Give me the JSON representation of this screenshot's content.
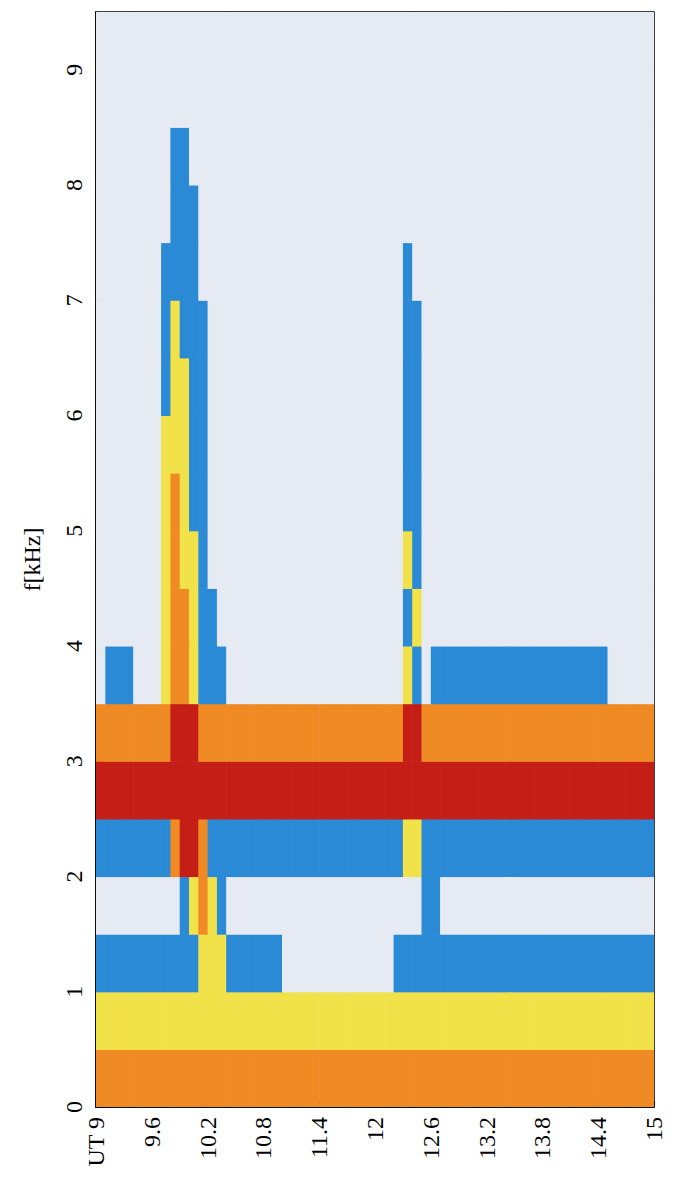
{
  "chart_data": {
    "type": "heatmap",
    "y_label": "f[kHz]",
    "xlim": [
      9,
      15
    ],
    "ylim": [
      0,
      9.5
    ],
    "xticks": [
      {
        "value": 9,
        "label": "UT 9"
      },
      9.6,
      10.2,
      10.8,
      11.4,
      12,
      12.6,
      13.2,
      13.8,
      14.4,
      15
    ],
    "yticks": [
      0,
      1,
      2,
      3,
      4,
      5,
      6,
      7,
      8,
      9
    ],
    "grid": false,
    "colors": [
      "#e6eaf2",
      "#2b8ad6",
      "#f2e24a",
      "#f08a24",
      "#c41e16"
    ],
    "time_edges": [
      9,
      9.1,
      9.2,
      9.3,
      9.4,
      9.5,
      9.6,
      9.7,
      9.8,
      9.9,
      10,
      10.1,
      10.2,
      10.3,
      10.4,
      10.5,
      10.6,
      10.7,
      10.8,
      10.9,
      11,
      11.1,
      11.2,
      11.3,
      11.4,
      11.5,
      11.6,
      11.7,
      11.8,
      11.9,
      12,
      12.1,
      12.2,
      12.3,
      12.4,
      12.5,
      12.6,
      12.7,
      12.8,
      12.9,
      13,
      13.1,
      13.2,
      13.3,
      13.4,
      13.5,
      13.6,
      13.7,
      13.8,
      13.9,
      14,
      14.1,
      14.2,
      14.3,
      14.4,
      14.5,
      14.6,
      14.7,
      14.8,
      14.9,
      15
    ],
    "freq_edges": [
      0,
      0.5,
      1,
      1.5,
      2,
      2.5,
      3,
      3.5,
      4,
      4.5,
      5,
      5.5,
      6,
      6.5,
      7,
      7.5,
      8,
      8.5,
      9,
      9.5
    ],
    "intensity": [
      [
        3,
        3,
        3,
        3,
        3,
        3,
        3,
        3,
        3,
        3,
        3,
        3,
        3,
        3,
        3,
        3,
        3,
        3,
        3,
        3,
        3,
        3,
        3,
        3,
        3,
        3,
        3,
        3,
        3,
        3,
        3,
        3,
        3,
        3,
        3,
        3,
        3,
        3,
        3,
        3,
        3,
        3,
        3,
        3,
        3,
        3,
        3,
        3,
        3,
        3,
        3,
        3,
        3,
        3,
        3,
        3,
        3,
        3,
        3,
        3
      ],
      [
        2,
        2,
        2,
        2,
        2,
        2,
        2,
        2,
        2,
        2,
        2,
        2,
        2,
        2,
        2,
        2,
        2,
        2,
        2,
        2,
        2,
        2,
        2,
        2,
        2,
        2,
        2,
        2,
        2,
        2,
        2,
        2,
        2,
        2,
        2,
        2,
        2,
        2,
        2,
        2,
        2,
        2,
        2,
        2,
        2,
        2,
        2,
        2,
        2,
        2,
        2,
        2,
        2,
        2,
        2,
        2,
        2,
        2,
        2,
        2
      ],
      [
        1,
        1,
        1,
        1,
        1,
        1,
        1,
        1,
        1,
        1,
        1,
        2,
        2,
        2,
        1,
        1,
        1,
        1,
        1,
        1,
        0,
        0,
        0,
        0,
        0,
        0,
        0,
        0,
        0,
        0,
        0,
        0,
        1,
        1,
        1,
        1,
        1,
        1,
        1,
        1,
        1,
        1,
        1,
        1,
        1,
        1,
        1,
        1,
        1,
        1,
        1,
        1,
        1,
        1,
        1,
        1,
        1,
        1,
        1,
        1
      ],
      [
        0,
        0,
        0,
        0,
        0,
        0,
        0,
        0,
        0,
        1,
        2,
        3,
        2,
        1,
        0,
        0,
        0,
        0,
        0,
        0,
        0,
        0,
        0,
        0,
        0,
        0,
        0,
        0,
        0,
        0,
        0,
        0,
        0,
        0,
        0,
        1,
        1,
        0,
        0,
        0,
        0,
        0,
        0,
        0,
        0,
        0,
        0,
        0,
        0,
        0,
        0,
        0,
        0,
        0,
        0,
        0,
        0,
        0,
        0,
        0
      ],
      [
        1,
        1,
        1,
        1,
        1,
        1,
        1,
        1,
        3,
        4,
        4,
        3,
        1,
        1,
        1,
        1,
        1,
        1,
        1,
        1,
        1,
        1,
        1,
        1,
        1,
        1,
        1,
        1,
        1,
        1,
        1,
        1,
        1,
        2,
        2,
        1,
        1,
        1,
        1,
        1,
        1,
        1,
        1,
        1,
        1,
        1,
        1,
        1,
        1,
        1,
        1,
        1,
        1,
        1,
        1,
        1,
        1,
        1,
        1,
        1
      ],
      [
        4,
        4,
        4,
        4,
        4,
        4,
        4,
        4,
        4,
        4,
        4,
        4,
        4,
        4,
        4,
        4,
        4,
        4,
        4,
        4,
        4,
        4,
        4,
        4,
        4,
        4,
        4,
        4,
        4,
        4,
        4,
        4,
        4,
        4,
        4,
        4,
        4,
        4,
        4,
        4,
        4,
        4,
        4,
        4,
        4,
        4,
        4,
        4,
        4,
        4,
        4,
        4,
        4,
        4,
        4,
        4,
        4,
        4,
        4,
        4
      ],
      [
        3,
        3,
        3,
        3,
        3,
        3,
        3,
        3,
        4,
        4,
        4,
        3,
        3,
        3,
        3,
        3,
        3,
        3,
        3,
        3,
        3,
        3,
        3,
        3,
        3,
        3,
        3,
        3,
        3,
        3,
        3,
        3,
        3,
        4,
        4,
        3,
        3,
        3,
        3,
        3,
        3,
        3,
        3,
        3,
        3,
        3,
        3,
        3,
        3,
        3,
        3,
        3,
        3,
        3,
        3,
        3,
        3,
        3,
        3,
        3
      ],
      [
        0,
        1,
        1,
        1,
        0,
        0,
        0,
        2,
        3,
        3,
        2,
        1,
        1,
        1,
        0,
        0,
        0,
        0,
        0,
        0,
        0,
        0,
        0,
        0,
        0,
        0,
        0,
        0,
        0,
        0,
        0,
        0,
        0,
        2,
        1,
        0,
        1,
        1,
        1,
        1,
        1,
        1,
        1,
        1,
        1,
        1,
        1,
        1,
        1,
        1,
        1,
        1,
        1,
        1,
        1,
        0,
        0,
        0,
        0,
        0
      ],
      [
        0,
        0,
        0,
        0,
        0,
        0,
        0,
        2,
        3,
        3,
        2,
        1,
        1,
        0,
        0,
        0,
        0,
        0,
        0,
        0,
        0,
        0,
        0,
        0,
        0,
        0,
        0,
        0,
        0,
        0,
        0,
        0,
        0,
        1,
        2,
        0,
        0,
        0,
        0,
        0,
        0,
        0,
        0,
        0,
        0,
        0,
        0,
        0,
        0,
        0,
        0,
        0,
        0,
        0,
        0,
        0,
        0,
        0,
        0,
        0
      ],
      [
        0,
        0,
        0,
        0,
        0,
        0,
        0,
        2,
        3,
        2,
        2,
        1,
        0,
        0,
        0,
        0,
        0,
        0,
        0,
        0,
        0,
        0,
        0,
        0,
        0,
        0,
        0,
        0,
        0,
        0,
        0,
        0,
        0,
        2,
        1,
        0,
        0,
        0,
        0,
        0,
        0,
        0,
        0,
        0,
        0,
        0,
        0,
        0,
        0,
        0,
        0,
        0,
        0,
        0,
        0,
        0,
        0,
        0,
        0,
        0
      ],
      [
        0,
        0,
        0,
        0,
        0,
        0,
        0,
        2,
        3,
        2,
        1,
        1,
        0,
        0,
        0,
        0,
        0,
        0,
        0,
        0,
        0,
        0,
        0,
        0,
        0,
        0,
        0,
        0,
        0,
        0,
        0,
        0,
        0,
        1,
        1,
        0,
        0,
        0,
        0,
        0,
        0,
        0,
        0,
        0,
        0,
        0,
        0,
        0,
        0,
        0,
        0,
        0,
        0,
        0,
        0,
        0,
        0,
        0,
        0,
        0
      ],
      [
        0,
        0,
        0,
        0,
        0,
        0,
        0,
        2,
        2,
        2,
        1,
        1,
        0,
        0,
        0,
        0,
        0,
        0,
        0,
        0,
        0,
        0,
        0,
        0,
        0,
        0,
        0,
        0,
        0,
        0,
        0,
        0,
        0,
        1,
        1,
        0,
        0,
        0,
        0,
        0,
        0,
        0,
        0,
        0,
        0,
        0,
        0,
        0,
        0,
        0,
        0,
        0,
        0,
        0,
        0,
        0,
        0,
        0,
        0,
        0
      ],
      [
        0,
        0,
        0,
        0,
        0,
        0,
        0,
        1,
        2,
        2,
        1,
        1,
        0,
        0,
        0,
        0,
        0,
        0,
        0,
        0,
        0,
        0,
        0,
        0,
        0,
        0,
        0,
        0,
        0,
        0,
        0,
        0,
        0,
        1,
        1,
        0,
        0,
        0,
        0,
        0,
        0,
        0,
        0,
        0,
        0,
        0,
        0,
        0,
        0,
        0,
        0,
        0,
        0,
        0,
        0,
        0,
        0,
        0,
        0,
        0
      ],
      [
        0,
        0,
        0,
        0,
        0,
        0,
        0,
        1,
        2,
        1,
        1,
        1,
        0,
        0,
        0,
        0,
        0,
        0,
        0,
        0,
        0,
        0,
        0,
        0,
        0,
        0,
        0,
        0,
        0,
        0,
        0,
        0,
        0,
        1,
        1,
        0,
        0,
        0,
        0,
        0,
        0,
        0,
        0,
        0,
        0,
        0,
        0,
        0,
        0,
        0,
        0,
        0,
        0,
        0,
        0,
        0,
        0,
        0,
        0,
        0
      ],
      [
        0,
        0,
        0,
        0,
        0,
        0,
        0,
        1,
        1,
        1,
        1,
        0,
        0,
        0,
        0,
        0,
        0,
        0,
        0,
        0,
        0,
        0,
        0,
        0,
        0,
        0,
        0,
        0,
        0,
        0,
        0,
        0,
        0,
        1,
        0,
        0,
        0,
        0,
        0,
        0,
        0,
        0,
        0,
        0,
        0,
        0,
        0,
        0,
        0,
        0,
        0,
        0,
        0,
        0,
        0,
        0,
        0,
        0,
        0,
        0
      ],
      [
        0,
        0,
        0,
        0,
        0,
        0,
        0,
        0,
        1,
        1,
        1,
        0,
        0,
        0,
        0,
        0,
        0,
        0,
        0,
        0,
        0,
        0,
        0,
        0,
        0,
        0,
        0,
        0,
        0,
        0,
        0,
        0,
        0,
        0,
        0,
        0,
        0,
        0,
        0,
        0,
        0,
        0,
        0,
        0,
        0,
        0,
        0,
        0,
        0,
        0,
        0,
        0,
        0,
        0,
        0,
        0,
        0,
        0,
        0,
        0
      ],
      [
        0,
        0,
        0,
        0,
        0,
        0,
        0,
        0,
        1,
        1,
        0,
        0,
        0,
        0,
        0,
        0,
        0,
        0,
        0,
        0,
        0,
        0,
        0,
        0,
        0,
        0,
        0,
        0,
        0,
        0,
        0,
        0,
        0,
        0,
        0,
        0,
        0,
        0,
        0,
        0,
        0,
        0,
        0,
        0,
        0,
        0,
        0,
        0,
        0,
        0,
        0,
        0,
        0,
        0,
        0,
        0,
        0,
        0,
        0,
        0
      ],
      [
        0,
        0,
        0,
        0,
        0,
        0,
        0,
        0,
        0,
        0,
        0,
        0,
        0,
        0,
        0,
        0,
        0,
        0,
        0,
        0,
        0,
        0,
        0,
        0,
        0,
        0,
        0,
        0,
        0,
        0,
        0,
        0,
        0,
        0,
        0,
        0,
        0,
        0,
        0,
        0,
        0,
        0,
        0,
        0,
        0,
        0,
        0,
        0,
        0,
        0,
        0,
        0,
        0,
        0,
        0,
        0,
        0,
        0,
        0,
        0
      ],
      [
        0,
        0,
        0,
        0,
        0,
        0,
        0,
        0,
        0,
        0,
        0,
        0,
        0,
        0,
        0,
        0,
        0,
        0,
        0,
        0,
        0,
        0,
        0,
        0,
        0,
        0,
        0,
        0,
        0,
        0,
        0,
        0,
        0,
        0,
        0,
        0,
        0,
        0,
        0,
        0,
        0,
        0,
        0,
        0,
        0,
        0,
        0,
        0,
        0,
        0,
        0,
        0,
        0,
        0,
        0,
        0,
        0,
        0,
        0,
        0
      ]
    ]
  }
}
